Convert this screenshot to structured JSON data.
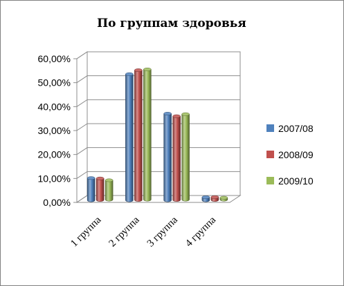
{
  "chart_data": {
    "type": "bar",
    "title": "По группам здоровья",
    "categories": [
      "1 группа",
      "2 группа",
      "3 группа",
      "4 группа"
    ],
    "series": [
      {
        "name": "2007/08",
        "values": [
          0.093,
          0.527,
          0.362,
          0.013
        ],
        "color": "#4f81bd"
      },
      {
        "name": "2008/09",
        "values": [
          0.09,
          0.542,
          0.35,
          0.012
        ],
        "color": "#c0504d"
      },
      {
        "name": "2009/10",
        "values": [
          0.081,
          0.544,
          0.357,
          0.008
        ],
        "color": "#9bbb59"
      }
    ],
    "y_ticks": [
      "0,00%",
      "10,00%",
      "20,00%",
      "30,00%",
      "40,00%",
      "50,00%",
      "60,00%"
    ],
    "ylim": [
      0,
      0.6
    ],
    "grid": true,
    "legend_position": "right",
    "style": "3d-cylinder"
  }
}
